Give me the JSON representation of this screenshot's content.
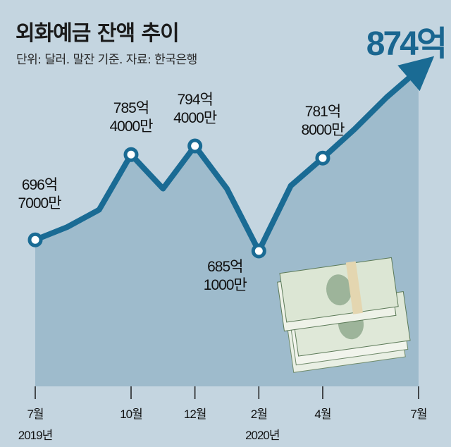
{
  "chart_data": {
    "type": "line",
    "title": "외화예금 잔액 추이",
    "subtitle": "단위: 달러. 말잔 기준. 자료: 한국은행",
    "highlight": "874억",
    "x": [
      "2019-07",
      "2019-08",
      "2019-09",
      "2019-10",
      "2019-11",
      "2019-12",
      "2020-01",
      "2020-02",
      "2020-03",
      "2020-04",
      "2020-05",
      "2020-06",
      "2020-07"
    ],
    "values": [
      696.7,
      710,
      728,
      785.4,
      750,
      794.4,
      750,
      685.1,
      753,
      781.8,
      812,
      845,
      874
    ],
    "unit": "억 달러",
    "data_labels": [
      {
        "index": 0,
        "line1": "696억",
        "line2": "7000만"
      },
      {
        "index": 3,
        "line1": "785억",
        "line2": "4000만"
      },
      {
        "index": 5,
        "line1": "794억",
        "line2": "4000만"
      },
      {
        "index": 7,
        "line1": "685억",
        "line2": "1000만"
      },
      {
        "index": 9,
        "line1": "781억",
        "line2": "8000만"
      }
    ],
    "x_ticks": [
      {
        "index": 0,
        "label": "7월",
        "year": "2019년"
      },
      {
        "index": 3,
        "label": "10월"
      },
      {
        "index": 5,
        "label": "12월"
      },
      {
        "index": 7,
        "label": "2월",
        "year": "2020년"
      },
      {
        "index": 9,
        "label": "4월"
      },
      {
        "index": 12,
        "label": "7월"
      }
    ],
    "colors": {
      "line": "#1a6b94",
      "area": "#9ebbcc",
      "background": "#c4d5e0"
    }
  }
}
